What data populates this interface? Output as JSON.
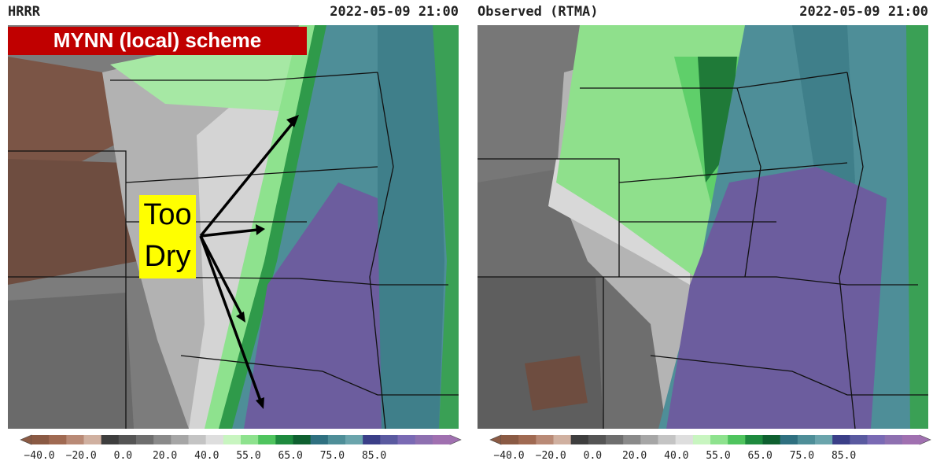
{
  "panels": [
    {
      "model": "HRRR",
      "time": "2022-05-09 21:00",
      "scheme": "MYNN (local) scheme",
      "annotation": [
        "Too",
        "Dry"
      ],
      "colorbar": [
        "−40.0",
        "−20.0",
        "0.0",
        "20.0",
        "40.0",
        "55.0",
        "65.0",
        "75.0",
        "85.0"
      ]
    },
    {
      "model": "Observed (RTMA)",
      "time": "2022-05-09 21:00",
      "colorbar": [
        "−40.0",
        "−20.0",
        "0.0",
        "20.0",
        "40.0",
        "55.0",
        "65.0",
        "75.0",
        "85.0"
      ]
    }
  ]
}
